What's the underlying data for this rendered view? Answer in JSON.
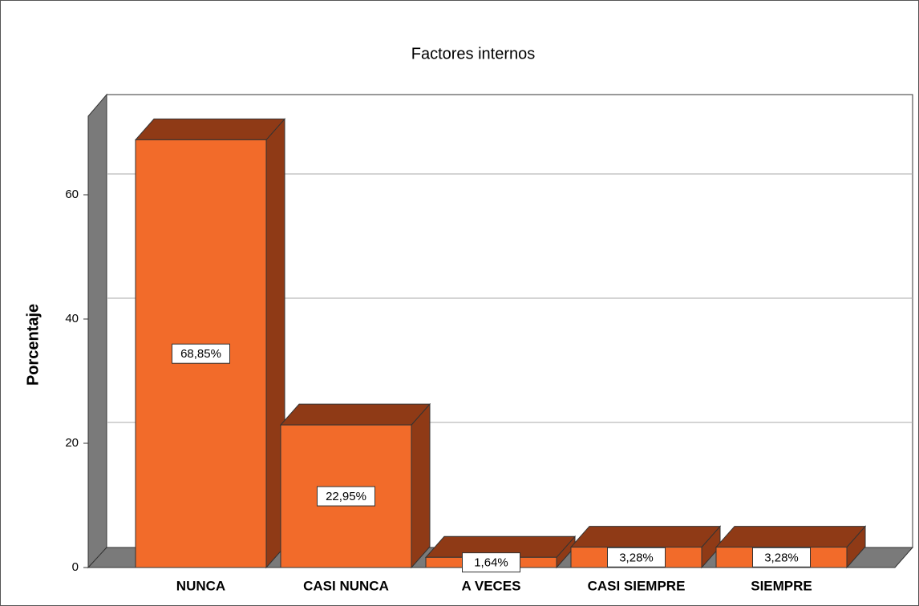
{
  "chart_data": {
    "type": "bar3d",
    "title": "Factores internos",
    "y_label": "Porcentaje",
    "categories": [
      "NUNCA",
      "CASI NUNCA",
      "A VECES",
      "CASI SIEMPRE",
      "SIEMPRE"
    ],
    "values": [
      68.85,
      22.95,
      1.64,
      3.28,
      3.28
    ],
    "value_labels": [
      "68,85%",
      "22,95%",
      "1,64%",
      "3,28%",
      "3,28%"
    ],
    "color": "#f26b2a",
    "ylim": [
      0,
      72
    ],
    "yticks": [
      0,
      20,
      40,
      60
    ],
    "grid": true
  }
}
